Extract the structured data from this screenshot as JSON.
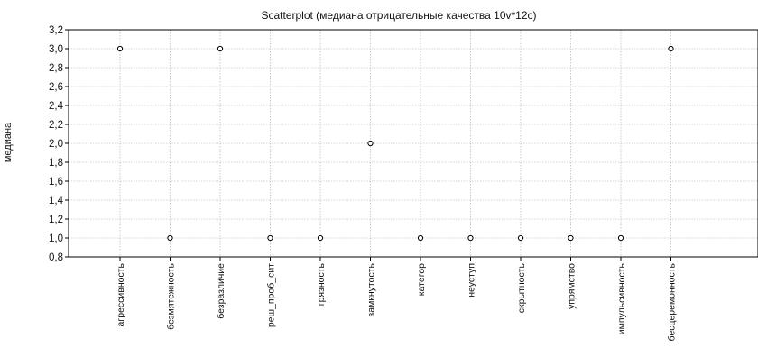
{
  "chart_data": {
    "type": "scatter",
    "title": "Scatterplot (медиана отрицательные качества 10v*12c)",
    "ylabel": "медиана",
    "xlabel": "",
    "categories": [
      "агрессивность",
      "безмятежность",
      "безразличие",
      "реш_проб_сит",
      "грязность",
      "замкнутость",
      "категор",
      "неуступ",
      "скрытность",
      "упрямство",
      "импульсивность",
      "бесцеремонность"
    ],
    "values": [
      3.0,
      1.0,
      3.0,
      1.0,
      1.0,
      2.0,
      1.0,
      1.0,
      1.0,
      1.0,
      1.0,
      3.0
    ],
    "ylim": [
      0.8,
      3.2
    ],
    "yticks": [
      "0,8",
      "1,0",
      "1,2",
      "1,4",
      "1,6",
      "1,8",
      "2,0",
      "2,2",
      "2,4",
      "2,6",
      "2,8",
      "3,0",
      "3,2"
    ],
    "grid": true,
    "legend": "none"
  }
}
